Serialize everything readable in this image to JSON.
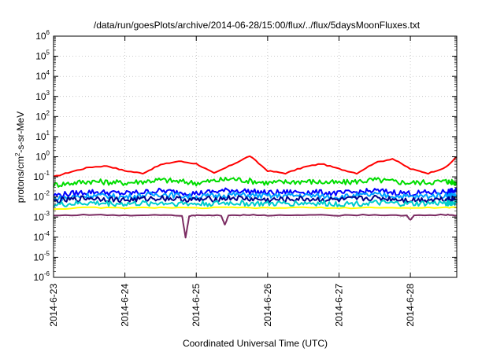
{
  "chart_data": {
    "type": "line",
    "title": "/data/run/goesPlots/archive/2014-06-28/15:00/flux/../flux/5daysMoonFluxes.txt",
    "xlabel": "Coordinated Universal Time (UTC)",
    "ylabel_parts": [
      "protons/cm",
      "2",
      "-s-sr-MeV"
    ],
    "y_scale": "log",
    "ylim": [
      1e-06,
      1000000.0
    ],
    "y_ticks": [
      {
        "base": "10",
        "exp": "-6",
        "value": 1e-06
      },
      {
        "base": "10",
        "exp": "-5",
        "value": 1e-05
      },
      {
        "base": "10",
        "exp": "-4",
        "value": 0.0001
      },
      {
        "base": "10",
        "exp": "-3",
        "value": 0.001
      },
      {
        "base": "10",
        "exp": "-2",
        "value": 0.01
      },
      {
        "base": "10",
        "exp": "-1",
        "value": 0.1
      },
      {
        "base": "10",
        "exp": "0",
        "value": 1
      },
      {
        "base": "10",
        "exp": "1",
        "value": 10
      },
      {
        "base": "10",
        "exp": "2",
        "value": 100
      },
      {
        "base": "10",
        "exp": "3",
        "value": 1000
      },
      {
        "base": "10",
        "exp": "4",
        "value": 10000
      },
      {
        "base": "10",
        "exp": "5",
        "value": 100000
      },
      {
        "base": "10",
        "exp": "6",
        "value": 1000000
      }
    ],
    "x_ticks": [
      {
        "label": "2014-6-23",
        "value": 0
      },
      {
        "label": "2014-6-24",
        "value": 1
      },
      {
        "label": "2014-6-25",
        "value": 2
      },
      {
        "label": "2014-6-26",
        "value": 3
      },
      {
        "label": "2014-6-27",
        "value": 4
      },
      {
        "label": "2014-6-28",
        "value": 5
      }
    ],
    "xlim_days": [
      0,
      5.65
    ],
    "grid": true,
    "legend": "none",
    "series": [
      {
        "color": "#ff0000",
        "x": [
          0,
          0.25,
          0.5,
          0.75,
          1.0,
          1.25,
          1.5,
          1.75,
          2.0,
          2.25,
          2.5,
          2.75,
          3.0,
          3.25,
          3.5,
          3.75,
          4.0,
          4.25,
          4.5,
          4.75,
          5.0,
          5.25,
          5.5,
          5.65
        ],
        "y": [
          0.1,
          0.18,
          0.3,
          0.35,
          0.2,
          0.15,
          0.4,
          0.6,
          0.45,
          0.15,
          0.4,
          1.1,
          0.2,
          0.15,
          0.3,
          0.45,
          0.25,
          0.15,
          0.5,
          0.8,
          0.25,
          0.15,
          0.3,
          1.0
        ]
      },
      {
        "color": "#00dd00",
        "x": [
          0,
          0.5,
          1.0,
          1.5,
          2.0,
          2.5,
          3.0,
          3.5,
          4.0,
          4.5,
          5.0,
          5.5,
          5.65
        ],
        "y": [
          0.04,
          0.06,
          0.05,
          0.07,
          0.05,
          0.08,
          0.05,
          0.06,
          0.05,
          0.07,
          0.05,
          0.06,
          0.05
        ]
      },
      {
        "color": "#0000ff",
        "x": [
          0,
          0.5,
          1.0,
          1.5,
          2.0,
          2.5,
          3.0,
          3.5,
          4.0,
          4.5,
          5.0,
          5.5,
          5.65
        ],
        "y": [
          0.012,
          0.018,
          0.015,
          0.02,
          0.015,
          0.022,
          0.016,
          0.018,
          0.015,
          0.02,
          0.015,
          0.018,
          0.02
        ]
      },
      {
        "color": "#00a0ff",
        "x": [
          0,
          0.5,
          1.0,
          1.5,
          2.0,
          2.5,
          3.0,
          3.5,
          4.0,
          4.5,
          5.0,
          5.5,
          5.65
        ],
        "y": [
          0.008,
          0.012,
          0.01,
          0.014,
          0.01,
          0.013,
          0.011,
          0.012,
          0.01,
          0.013,
          0.01,
          0.012,
          0.012
        ]
      },
      {
        "color": "#00008b",
        "x": [
          0,
          0.5,
          1.0,
          1.5,
          2.0,
          2.5,
          3.0,
          3.5,
          4.0,
          4.5,
          5.0,
          5.5,
          5.65
        ],
        "y": [
          0.006,
          0.009,
          0.007,
          0.009,
          0.007,
          0.009,
          0.007,
          0.008,
          0.007,
          0.009,
          0.007,
          0.008,
          0.008
        ]
      },
      {
        "color": "#00cccc",
        "x": [
          0,
          0.5,
          1.0,
          1.5,
          2.0,
          2.5,
          3.0,
          3.5,
          4.0,
          4.5,
          5.0,
          5.5,
          5.65
        ],
        "y": [
          0.004,
          0.005,
          0.0045,
          0.005,
          0.0045,
          0.005,
          0.0045,
          0.005,
          0.0045,
          0.005,
          0.0045,
          0.005,
          0.005
        ]
      },
      {
        "color": "#ffff00",
        "x": [
          0,
          0.5,
          1.0,
          1.5,
          2.0,
          2.5,
          3.0,
          3.5,
          4.0,
          4.5,
          5.0,
          5.5,
          5.65
        ],
        "y": [
          0.0025,
          0.003,
          0.0028,
          0.003,
          0.0028,
          0.003,
          0.0028,
          0.003,
          0.0028,
          0.003,
          0.0028,
          0.003,
          0.003
        ]
      },
      {
        "color": "#7b2b62",
        "x": [
          0,
          0.5,
          1.0,
          1.5,
          1.8,
          1.85,
          1.9,
          2.0,
          2.35,
          2.4,
          2.45,
          2.7,
          3.0,
          3.5,
          4.0,
          4.5,
          4.95,
          5.0,
          5.05,
          5.5,
          5.65
        ],
        "y": [
          0.0012,
          0.0013,
          0.0012,
          0.0013,
          0.0012,
          0.0001,
          0.0011,
          0.0012,
          0.0012,
          0.0004,
          0.0012,
          0.0013,
          0.0012,
          0.0013,
          0.0012,
          0.0013,
          0.0012,
          0.0007,
          0.0012,
          0.0013,
          0.0012
        ]
      }
    ]
  }
}
